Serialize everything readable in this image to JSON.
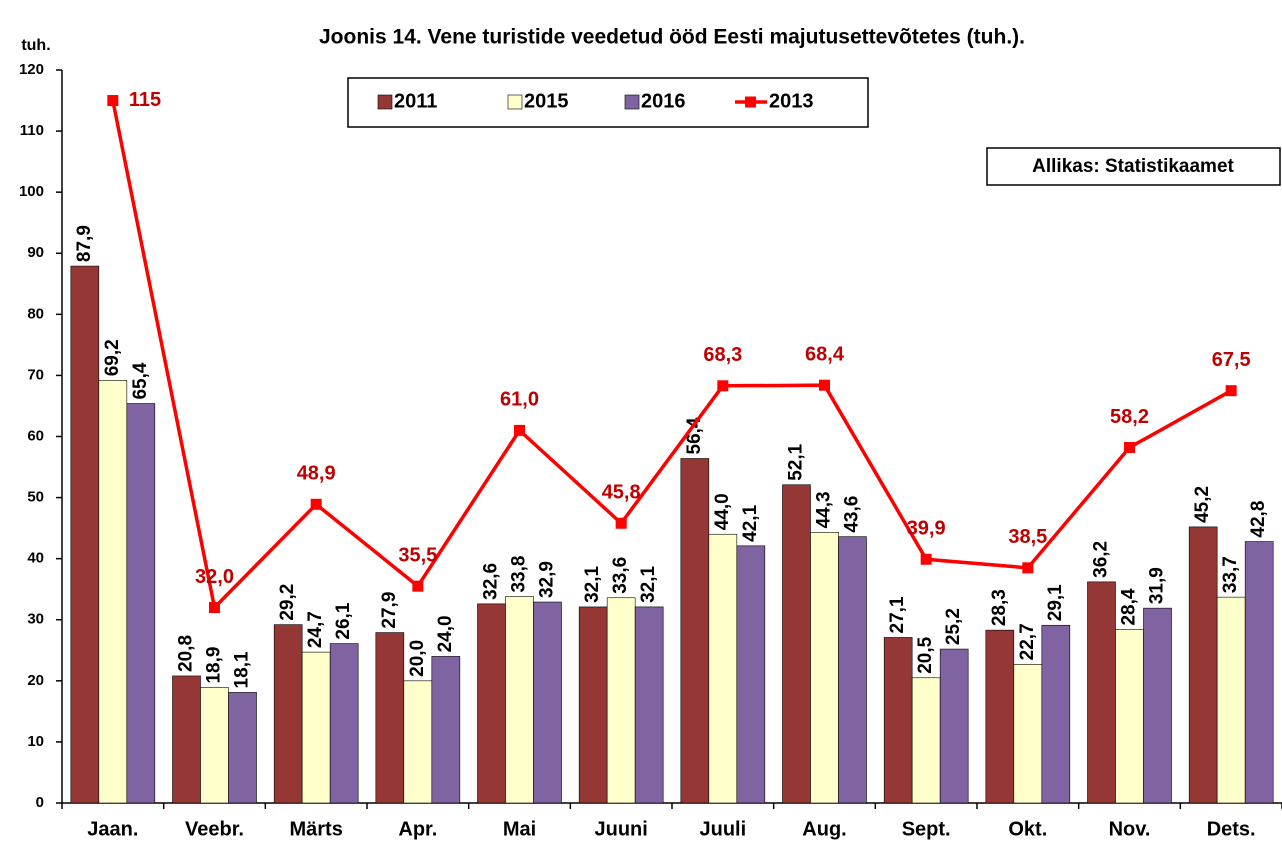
{
  "chart_data": {
    "type": "bar",
    "title": "Joonis 14. Vene turistide veedetud ööd Eesti majutusettevõtetes (tuh.).",
    "y_label": "tuh.",
    "source": "Allikas: Statistikaamet",
    "categories": [
      "Jaan.",
      "Veebr.",
      "Märts",
      "Apr.",
      "Mai",
      "Juuni",
      "Juuli",
      "Aug.",
      "Sept.",
      "Okt.",
      "Nov.",
      "Dets."
    ],
    "series": [
      {
        "name": "2011",
        "type": "bar",
        "color": "#953735",
        "values": [
          87.9,
          20.8,
          29.2,
          27.9,
          32.6,
          32.1,
          56.4,
          52.1,
          27.1,
          28.3,
          36.2,
          45.2
        ],
        "value_labels": [
          "87,9",
          "20,8",
          "29,2",
          "27,9",
          "32,6",
          "32,1",
          "56,4",
          "52,1",
          "27,1",
          "28,3",
          "36,2",
          "45,2"
        ]
      },
      {
        "name": "2015",
        "type": "bar",
        "color": "#ffffcc",
        "values": [
          69.2,
          18.9,
          24.7,
          20.0,
          33.8,
          33.6,
          44.0,
          44.3,
          20.5,
          22.7,
          28.4,
          33.7
        ],
        "value_labels": [
          "69,2",
          "18,9",
          "24,7",
          "20,0",
          "33,8",
          "33,6",
          "44,0",
          "44,3",
          "20,5",
          "22,7",
          "28,4",
          "33,7"
        ]
      },
      {
        "name": "2016",
        "type": "bar",
        "color": "#8064a2",
        "values": [
          65.4,
          18.1,
          26.1,
          24.0,
          32.9,
          32.1,
          42.1,
          43.6,
          25.2,
          29.1,
          31.9,
          42.8
        ],
        "value_labels": [
          "65,4",
          "18,1",
          "26,1",
          "24,0",
          "32,9",
          "32,1",
          "42,1",
          "43,6",
          "25,2",
          "29,1",
          "31,9",
          "42,8"
        ]
      },
      {
        "name": "2013",
        "type": "line",
        "color": "#ff0000",
        "label_color": "#c00000",
        "values": [
          115,
          32.0,
          48.9,
          35.5,
          61.0,
          45.8,
          68.3,
          68.4,
          39.9,
          38.5,
          58.2,
          67.5
        ],
        "value_labels": [
          "115",
          "32,0",
          "48,9",
          "35,5",
          "61,0",
          "45,8",
          "68,3",
          "68,4",
          "39,9",
          "38,5",
          "58,2",
          "67,5"
        ]
      }
    ],
    "ylim": [
      0,
      120
    ],
    "yticks": [
      0,
      10,
      20,
      30,
      40,
      50,
      60,
      70,
      80,
      90,
      100,
      110,
      120
    ],
    "grid": false
  }
}
